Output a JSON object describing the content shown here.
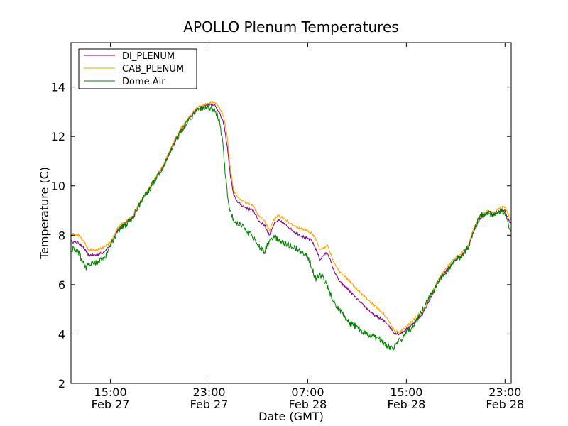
{
  "chart_data": {
    "type": "line",
    "title": "APOLLO Plenum Temperatures",
    "xlabel": "Date (GMT)",
    "ylabel": "Temperature (C)",
    "xlim": [
      11.8,
      47.5
    ],
    "ylim": [
      2,
      15.8
    ],
    "yticks": [
      2,
      4,
      6,
      8,
      10,
      12,
      14
    ],
    "xticks": [
      {
        "t": 15,
        "time": "15:00",
        "date": "Feb 27"
      },
      {
        "t": 23,
        "time": "23:00",
        "date": "Feb 27"
      },
      {
        "t": 31,
        "time": "07:00",
        "date": "Feb 28"
      },
      {
        "t": 39,
        "time": "15:00",
        "date": "Feb 28"
      },
      {
        "t": 47,
        "time": "23:00",
        "date": "Feb 28"
      }
    ],
    "legend_position": "top-left",
    "series": [
      {
        "name": "DI_PLENUM",
        "color": "#800080",
        "noise": 0.05,
        "points": [
          [
            11.8,
            7.75
          ],
          [
            12.4,
            7.7
          ],
          [
            12.9,
            7.45
          ],
          [
            13.2,
            7.2
          ],
          [
            13.8,
            7.2
          ],
          [
            14.4,
            7.3
          ],
          [
            15.0,
            7.6
          ],
          [
            15.6,
            8.25
          ],
          [
            16.2,
            8.5
          ],
          [
            16.8,
            8.7
          ],
          [
            17.3,
            9.2
          ],
          [
            17.8,
            9.6
          ],
          [
            18.6,
            10.25
          ],
          [
            19.3,
            10.8
          ],
          [
            20.0,
            11.6
          ],
          [
            20.7,
            12.25
          ],
          [
            21.3,
            12.7
          ],
          [
            22.0,
            13.1
          ],
          [
            22.6,
            13.25
          ],
          [
            23.0,
            13.3
          ],
          [
            23.4,
            13.3
          ],
          [
            23.8,
            13.0
          ],
          [
            24.2,
            12.5
          ],
          [
            24.5,
            11.5
          ],
          [
            24.7,
            10.5
          ],
          [
            25.0,
            9.6
          ],
          [
            25.4,
            9.3
          ],
          [
            26.0,
            9.1
          ],
          [
            26.6,
            9.0
          ],
          [
            27.0,
            8.6
          ],
          [
            27.5,
            8.4
          ],
          [
            27.9,
            8.0
          ],
          [
            28.2,
            8.4
          ],
          [
            28.6,
            8.6
          ],
          [
            29.0,
            8.5
          ],
          [
            29.5,
            8.3
          ],
          [
            30.0,
            8.1
          ],
          [
            30.8,
            7.9
          ],
          [
            31.3,
            7.8
          ],
          [
            31.7,
            7.4
          ],
          [
            32.0,
            7.0
          ],
          [
            32.3,
            7.2
          ],
          [
            32.6,
            7.3
          ],
          [
            33.1,
            6.6
          ],
          [
            33.6,
            6.1
          ],
          [
            34.3,
            5.8
          ],
          [
            35.2,
            5.3
          ],
          [
            36.3,
            4.8
          ],
          [
            37.0,
            4.6
          ],
          [
            37.5,
            4.4
          ],
          [
            38.0,
            4.05
          ],
          [
            38.4,
            4.0
          ],
          [
            38.9,
            4.15
          ],
          [
            39.6,
            4.45
          ],
          [
            40.3,
            4.8
          ],
          [
            41.0,
            5.5
          ],
          [
            41.8,
            6.3
          ],
          [
            42.8,
            6.9
          ],
          [
            43.5,
            7.2
          ],
          [
            44.0,
            7.5
          ],
          [
            44.4,
            8.1
          ],
          [
            45.0,
            8.7
          ],
          [
            45.6,
            8.9
          ],
          [
            46.0,
            8.8
          ],
          [
            46.6,
            9.0
          ],
          [
            47.0,
            9.0
          ],
          [
            47.3,
            8.6
          ],
          [
            47.5,
            8.5
          ]
        ]
      },
      {
        "name": "CAB_PLENUM",
        "color": "#ffa500",
        "noise": 0.05,
        "points": [
          [
            11.8,
            8.05
          ],
          [
            12.4,
            8.0
          ],
          [
            12.9,
            7.7
          ],
          [
            13.2,
            7.4
          ],
          [
            13.8,
            7.4
          ],
          [
            14.4,
            7.5
          ],
          [
            15.0,
            7.7
          ],
          [
            15.6,
            8.3
          ],
          [
            16.2,
            8.55
          ],
          [
            16.8,
            8.75
          ],
          [
            17.3,
            9.25
          ],
          [
            17.8,
            9.65
          ],
          [
            18.6,
            10.3
          ],
          [
            19.3,
            10.85
          ],
          [
            20.0,
            11.65
          ],
          [
            20.7,
            12.3
          ],
          [
            21.3,
            12.75
          ],
          [
            22.0,
            13.15
          ],
          [
            22.6,
            13.3
          ],
          [
            23.0,
            13.35
          ],
          [
            23.4,
            13.4
          ],
          [
            23.8,
            13.2
          ],
          [
            24.2,
            12.8
          ],
          [
            24.5,
            11.9
          ],
          [
            24.7,
            10.8
          ],
          [
            25.0,
            9.8
          ],
          [
            25.4,
            9.5
          ],
          [
            26.0,
            9.3
          ],
          [
            26.6,
            9.2
          ],
          [
            27.0,
            8.8
          ],
          [
            27.5,
            8.6
          ],
          [
            27.9,
            8.2
          ],
          [
            28.2,
            8.6
          ],
          [
            28.6,
            8.8
          ],
          [
            29.0,
            8.7
          ],
          [
            29.5,
            8.5
          ],
          [
            30.0,
            8.35
          ],
          [
            30.8,
            8.2
          ],
          [
            31.3,
            8.1
          ],
          [
            31.7,
            7.8
          ],
          [
            32.0,
            7.4
          ],
          [
            32.3,
            7.5
          ],
          [
            32.6,
            7.6
          ],
          [
            33.1,
            6.9
          ],
          [
            33.6,
            6.5
          ],
          [
            34.3,
            6.2
          ],
          [
            35.2,
            5.7
          ],
          [
            36.3,
            5.2
          ],
          [
            37.0,
            4.9
          ],
          [
            37.5,
            4.6
          ],
          [
            38.0,
            4.15
          ],
          [
            38.4,
            4.05
          ],
          [
            38.9,
            4.25
          ],
          [
            39.6,
            4.6
          ],
          [
            40.3,
            4.95
          ],
          [
            41.0,
            5.6
          ],
          [
            41.8,
            6.4
          ],
          [
            42.8,
            7.0
          ],
          [
            43.5,
            7.3
          ],
          [
            44.0,
            7.6
          ],
          [
            44.4,
            8.2
          ],
          [
            45.0,
            8.8
          ],
          [
            45.6,
            9.0
          ],
          [
            46.0,
            8.9
          ],
          [
            46.6,
            9.1
          ],
          [
            47.0,
            9.15
          ],
          [
            47.3,
            8.8
          ],
          [
            47.5,
            8.6
          ]
        ]
      },
      {
        "name": "Dome Air",
        "color": "#008000",
        "noise": 0.13,
        "points": [
          [
            11.8,
            7.45
          ],
          [
            12.4,
            7.35
          ],
          [
            12.7,
            7.0
          ],
          [
            13.0,
            6.7
          ],
          [
            13.4,
            6.85
          ],
          [
            14.0,
            6.9
          ],
          [
            14.6,
            7.1
          ],
          [
            15.0,
            7.6
          ],
          [
            15.6,
            8.2
          ],
          [
            16.2,
            8.4
          ],
          [
            16.8,
            8.7
          ],
          [
            17.3,
            9.2
          ],
          [
            17.8,
            9.6
          ],
          [
            18.6,
            10.2
          ],
          [
            19.3,
            10.75
          ],
          [
            20.0,
            11.55
          ],
          [
            20.7,
            12.2
          ],
          [
            21.3,
            12.65
          ],
          [
            22.0,
            13.05
          ],
          [
            22.6,
            13.15
          ],
          [
            23.0,
            13.15
          ],
          [
            23.4,
            13.1
          ],
          [
            23.8,
            12.7
          ],
          [
            24.1,
            11.8
          ],
          [
            24.3,
            10.5
          ],
          [
            24.5,
            9.6
          ],
          [
            24.8,
            8.8
          ],
          [
            25.2,
            8.5
          ],
          [
            25.8,
            8.3
          ],
          [
            26.4,
            8.0
          ],
          [
            27.0,
            7.6
          ],
          [
            27.5,
            7.35
          ],
          [
            27.7,
            7.6
          ],
          [
            28.0,
            7.9
          ],
          [
            28.5,
            7.85
          ],
          [
            29.0,
            7.7
          ],
          [
            29.5,
            7.6
          ],
          [
            30.0,
            7.5
          ],
          [
            30.5,
            7.3
          ],
          [
            31.0,
            7.15
          ],
          [
            31.4,
            6.6
          ],
          [
            31.6,
            6.2
          ],
          [
            31.9,
            6.4
          ],
          [
            32.2,
            6.3
          ],
          [
            32.6,
            5.9
          ],
          [
            33.0,
            5.4
          ],
          [
            33.5,
            5.0
          ],
          [
            34.0,
            4.7
          ],
          [
            34.5,
            4.4
          ],
          [
            35.0,
            4.3
          ],
          [
            35.5,
            4.05
          ],
          [
            35.9,
            4.0
          ],
          [
            36.5,
            3.85
          ],
          [
            37.0,
            3.75
          ],
          [
            37.5,
            3.5
          ],
          [
            37.9,
            3.45
          ],
          [
            38.4,
            3.7
          ],
          [
            38.9,
            4.0
          ],
          [
            39.5,
            4.3
          ],
          [
            40.2,
            4.9
          ],
          [
            41.0,
            5.6
          ],
          [
            41.8,
            6.3
          ],
          [
            42.8,
            6.9
          ],
          [
            43.5,
            7.2
          ],
          [
            44.0,
            7.5
          ],
          [
            44.4,
            8.1
          ],
          [
            45.0,
            8.8
          ],
          [
            45.6,
            8.9
          ],
          [
            46.0,
            8.8
          ],
          [
            46.6,
            9.0
          ],
          [
            47.0,
            8.9
          ],
          [
            47.3,
            8.4
          ],
          [
            47.5,
            8.2
          ]
        ]
      }
    ]
  }
}
